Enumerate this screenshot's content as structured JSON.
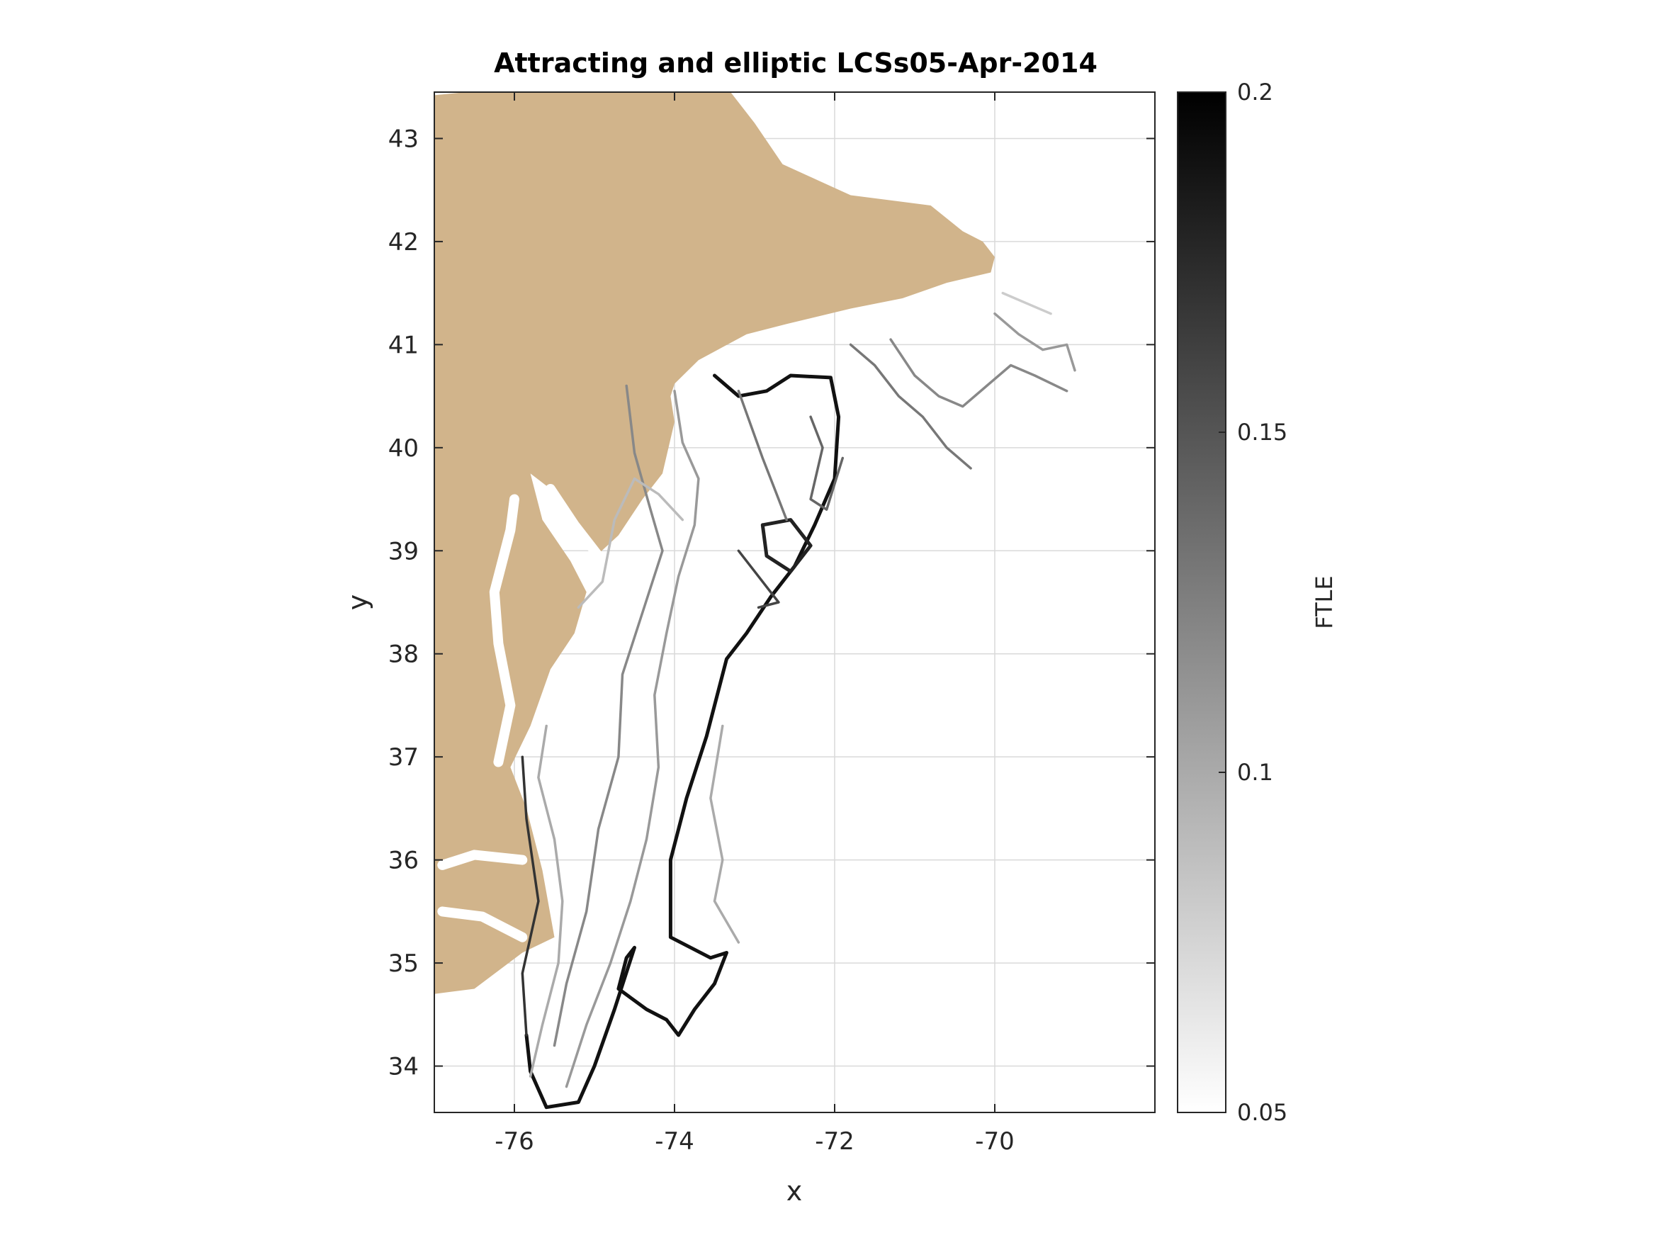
{
  "chart_data": {
    "type": "heatmap",
    "title": "Attracting and elliptic LCSs05-Apr-2014",
    "xlabel": "x",
    "ylabel": "y",
    "xlim": [
      -77,
      -68
    ],
    "ylim": [
      33.55,
      43.45
    ],
    "xticks": [
      -76,
      -74,
      -72,
      -70
    ],
    "xtick_labels": [
      "-76",
      "-74",
      "-72",
      "-70"
    ],
    "yticks": [
      34,
      35,
      36,
      37,
      38,
      39,
      40,
      41,
      42,
      43
    ],
    "ytick_labels": [
      "34",
      "35",
      "36",
      "37",
      "38",
      "39",
      "40",
      "41",
      "42",
      "43"
    ],
    "grid": true,
    "land_color": "#d1b48b",
    "colormap": "gray (white to black)",
    "colorbar": {
      "label": "FTLE",
      "range": [
        0.05,
        0.2
      ],
      "ticks": [
        0.05,
        0.1,
        0.15,
        0.2
      ],
      "tick_labels": [
        "0.05",
        "0.1",
        "0.15",
        "0.2"
      ],
      "position": "right"
    },
    "coastline": [
      [
        -77,
        43.42
      ],
      [
        -76.6,
        43.45
      ],
      [
        -73.3,
        43.45
      ],
      [
        -73.0,
        43.15
      ],
      [
        -72.65,
        42.75
      ],
      [
        -71.8,
        42.45
      ],
      [
        -70.8,
        42.35
      ],
      [
        -70.4,
        42.1
      ],
      [
        -70.15,
        42.0
      ],
      [
        -70.0,
        41.85
      ],
      [
        -70.05,
        41.7
      ],
      [
        -70.6,
        41.6
      ],
      [
        -71.15,
        41.45
      ],
      [
        -71.8,
        41.35
      ],
      [
        -72.6,
        41.2
      ],
      [
        -73.1,
        41.1
      ],
      [
        -73.7,
        40.85
      ],
      [
        -74.0,
        40.62
      ],
      [
        -74.05,
        40.5
      ],
      [
        -74.0,
        40.25
      ],
      [
        -74.15,
        39.75
      ],
      [
        -74.4,
        39.5
      ],
      [
        -74.7,
        39.15
      ],
      [
        -74.95,
        38.97
      ],
      [
        -75.3,
        39.35
      ],
      [
        -75.55,
        39.6
      ],
      [
        -75.8,
        39.75
      ],
      [
        -75.65,
        39.3
      ],
      [
        -75.3,
        38.9
      ],
      [
        -75.1,
        38.6
      ],
      [
        -75.25,
        38.2
      ],
      [
        -75.55,
        37.85
      ],
      [
        -75.8,
        37.3
      ],
      [
        -76.05,
        36.9
      ],
      [
        -75.85,
        36.5
      ],
      [
        -75.65,
        35.9
      ],
      [
        -75.5,
        35.25
      ],
      [
        -75.9,
        35.1
      ],
      [
        -76.5,
        34.75
      ],
      [
        -77,
        34.7
      ]
    ],
    "bay_segments": [
      {
        "name": "chesapeake",
        "points": [
          [
            -76.2,
            36.95
          ],
          [
            -76.05,
            37.5
          ],
          [
            -76.2,
            38.1
          ],
          [
            -76.25,
            38.6
          ],
          [
            -76.05,
            39.2
          ],
          [
            -76.0,
            39.5
          ]
        ]
      },
      {
        "name": "delaware",
        "points": [
          [
            -74.95,
            38.95
          ],
          [
            -75.25,
            39.25
          ],
          [
            -75.55,
            39.6
          ]
        ]
      },
      {
        "name": "pamlico",
        "points": [
          [
            -75.9,
            35.25
          ],
          [
            -76.4,
            35.45
          ],
          [
            -76.9,
            35.5
          ]
        ]
      },
      {
        "name": "albemarle",
        "points": [
          [
            -75.9,
            36.0
          ],
          [
            -76.5,
            36.05
          ],
          [
            -76.9,
            35.95
          ]
        ]
      }
    ],
    "lcs_curves": [
      {
        "ftle": 0.19,
        "points": [
          [
            -73.5,
            40.7
          ],
          [
            -73.2,
            40.5
          ],
          [
            -72.85,
            40.55
          ],
          [
            -72.55,
            40.7
          ],
          [
            -72.05,
            40.68
          ],
          [
            -71.95,
            40.3
          ],
          [
            -72.0,
            39.7
          ],
          [
            -72.25,
            39.25
          ],
          [
            -72.5,
            38.85
          ],
          [
            -72.8,
            38.55
          ],
          [
            -73.1,
            38.2
          ],
          [
            -73.35,
            37.95
          ],
          [
            -73.6,
            37.2
          ],
          [
            -73.85,
            36.6
          ],
          [
            -74.05,
            36.0
          ],
          [
            -74.05,
            35.25
          ],
          [
            -73.55,
            35.05
          ],
          [
            -73.35,
            35.1
          ],
          [
            -73.5,
            34.8
          ],
          [
            -73.75,
            34.55
          ],
          [
            -73.95,
            34.3
          ],
          [
            -74.1,
            34.45
          ],
          [
            -74.35,
            34.55
          ],
          [
            -74.7,
            34.75
          ],
          [
            -74.6,
            35.05
          ],
          [
            -74.5,
            35.15
          ],
          [
            -74.75,
            34.55
          ],
          [
            -75.0,
            34.0
          ],
          [
            -75.2,
            33.65
          ],
          [
            -75.6,
            33.6
          ],
          [
            -75.8,
            33.95
          ],
          [
            -75.85,
            34.3
          ]
        ]
      },
      {
        "ftle": 0.17,
        "points": [
          [
            -75.85,
            34.3
          ],
          [
            -75.9,
            34.9
          ],
          [
            -75.7,
            35.6
          ],
          [
            -75.85,
            36.4
          ],
          [
            -75.9,
            37.0
          ]
        ]
      },
      {
        "ftle": 0.18,
        "points": [
          [
            -72.9,
            39.25
          ],
          [
            -72.55,
            39.3
          ],
          [
            -72.3,
            39.05
          ],
          [
            -72.55,
            38.8
          ],
          [
            -72.85,
            38.95
          ],
          [
            -72.9,
            39.25
          ]
        ]
      },
      {
        "ftle": 0.16,
        "points": [
          [
            -73.2,
            39.0
          ],
          [
            -72.95,
            38.75
          ],
          [
            -72.7,
            38.5
          ],
          [
            -72.95,
            38.45
          ]
        ]
      },
      {
        "ftle": 0.14,
        "points": [
          [
            -72.3,
            40.3
          ],
          [
            -72.15,
            40.0
          ],
          [
            -72.3,
            39.5
          ],
          [
            -72.1,
            39.4
          ],
          [
            -71.9,
            39.9
          ]
        ]
      },
      {
        "ftle": 0.13,
        "points": [
          [
            -73.2,
            40.55
          ],
          [
            -72.9,
            39.9
          ],
          [
            -72.75,
            39.6
          ],
          [
            -72.6,
            39.3
          ]
        ]
      },
      {
        "ftle": 0.12,
        "points": [
          [
            -74.6,
            40.6
          ],
          [
            -74.5,
            39.95
          ],
          [
            -74.3,
            39.4
          ],
          [
            -74.15,
            39.0
          ],
          [
            -74.4,
            38.4
          ],
          [
            -74.65,
            37.8
          ],
          [
            -74.7,
            37.0
          ],
          [
            -74.95,
            36.3
          ],
          [
            -75.1,
            35.5
          ],
          [
            -75.35,
            34.8
          ],
          [
            -75.5,
            34.2
          ]
        ]
      },
      {
        "ftle": 0.11,
        "points": [
          [
            -74.0,
            40.55
          ],
          [
            -73.9,
            40.05
          ],
          [
            -73.7,
            39.7
          ],
          [
            -73.75,
            39.25
          ],
          [
            -73.95,
            38.75
          ],
          [
            -74.1,
            38.2
          ],
          [
            -74.25,
            37.6
          ],
          [
            -74.2,
            36.9
          ],
          [
            -74.35,
            36.2
          ],
          [
            -74.55,
            35.6
          ],
          [
            -74.8,
            35.0
          ],
          [
            -75.1,
            34.4
          ],
          [
            -75.35,
            33.8
          ]
        ]
      },
      {
        "ftle": 0.1,
        "points": [
          [
            -75.6,
            37.3
          ],
          [
            -75.7,
            36.8
          ],
          [
            -75.5,
            36.2
          ],
          [
            -75.4,
            35.6
          ],
          [
            -75.45,
            35.0
          ],
          [
            -75.65,
            34.4
          ],
          [
            -75.8,
            33.9
          ]
        ]
      },
      {
        "ftle": 0.1,
        "points": [
          [
            -73.4,
            37.3
          ],
          [
            -73.55,
            36.6
          ],
          [
            -73.4,
            36.0
          ],
          [
            -73.5,
            35.6
          ],
          [
            -73.2,
            35.2
          ]
        ]
      },
      {
        "ftle": 0.09,
        "points": [
          [
            -73.9,
            39.3
          ],
          [
            -74.2,
            39.55
          ],
          [
            -74.5,
            39.7
          ],
          [
            -74.75,
            39.3
          ],
          [
            -74.9,
            38.7
          ],
          [
            -75.2,
            38.45
          ]
        ]
      },
      {
        "ftle": 0.13,
        "points": [
          [
            -71.8,
            41.0
          ],
          [
            -71.5,
            40.8
          ],
          [
            -71.2,
            40.5
          ],
          [
            -70.9,
            40.3
          ],
          [
            -70.6,
            40.0
          ],
          [
            -70.3,
            39.8
          ]
        ]
      },
      {
        "ftle": 0.12,
        "points": [
          [
            -71.3,
            41.05
          ],
          [
            -71.0,
            40.7
          ],
          [
            -70.7,
            40.5
          ],
          [
            -70.4,
            40.4
          ],
          [
            -70.1,
            40.6
          ],
          [
            -69.8,
            40.8
          ],
          [
            -69.5,
            40.7
          ],
          [
            -69.1,
            40.55
          ]
        ]
      },
      {
        "ftle": 0.11,
        "points": [
          [
            -70.0,
            41.3
          ],
          [
            -69.7,
            41.1
          ],
          [
            -69.4,
            40.95
          ],
          [
            -69.1,
            41.0
          ],
          [
            -69.0,
            40.75
          ]
        ]
      },
      {
        "ftle": 0.08,
        "points": [
          [
            -69.9,
            41.5
          ],
          [
            -69.6,
            41.4
          ],
          [
            -69.3,
            41.3
          ]
        ]
      }
    ]
  }
}
